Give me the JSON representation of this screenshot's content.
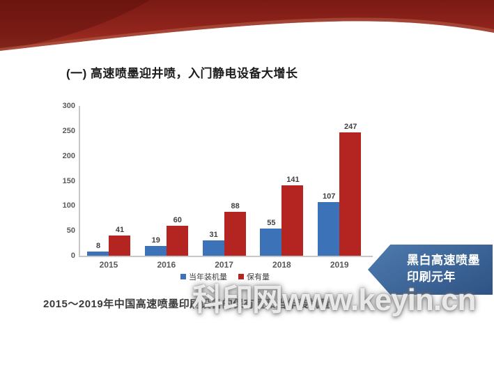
{
  "slide": {
    "title": "(一) 高速喷墨迎井喷，入门静电设备大增长",
    "caption": "2015～2019年中国高速喷墨印刷设备的保有量和当年装机量",
    "watermark": "科印网www.keyin.cn",
    "banner": {
      "line1": "黑白高速喷墨",
      "line2": "印刷元年",
      "color": "#3d6597"
    }
  },
  "colors": {
    "header_red_dark": "#7a1a14",
    "header_red_mid": "#9c2c22",
    "header_red_highlight": "#b8604c",
    "axis_gray": "#c6c6c6",
    "label_gray": "#595959",
    "value_gray": "#404040"
  },
  "chart_data": {
    "type": "bar",
    "title": "",
    "xlabel": "",
    "ylabel": "",
    "categories": [
      "2015",
      "2016",
      "2017",
      "2018",
      "2019"
    ],
    "series": [
      {
        "name": "当年装机量",
        "color": "#3c72b8",
        "values": [
          8,
          19,
          31,
          55,
          107
        ]
      },
      {
        "name": "保有量",
        "color": "#b42522",
        "values": [
          41,
          60,
          88,
          141,
          247
        ]
      }
    ],
    "ylim": [
      0,
      300
    ],
    "yticks": [
      0,
      50,
      100,
      150,
      200,
      250,
      300
    ],
    "grid": false,
    "legend_position": "bottom"
  }
}
